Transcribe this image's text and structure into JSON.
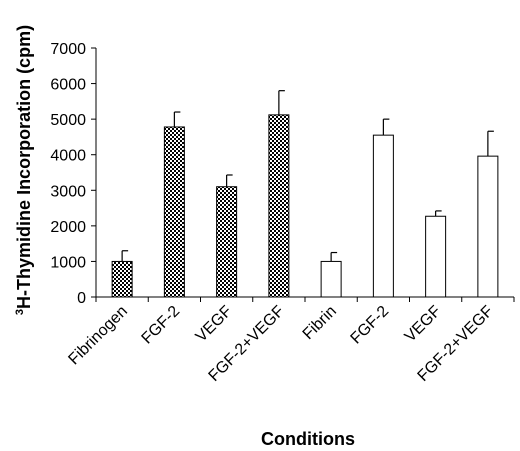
{
  "chart_data": {
    "type": "bar",
    "title": "",
    "xlabel": "Conditions",
    "ylabel_sup": "3",
    "ylabel": "H-Thymidine Incorporation (cpm)",
    "ylim": [
      0,
      7000
    ],
    "yticks": [
      0,
      1000,
      2000,
      3000,
      4000,
      5000,
      6000,
      7000
    ],
    "grid": false,
    "legend": "none",
    "categories": [
      "Fibrinogen",
      "FGF-2",
      "VEGF",
      "FGF-2+VEGF",
      "Fibrin",
      "FGF-2",
      "VEGF",
      "FGF-2+VEGF"
    ],
    "values": [
      1000,
      4780,
      3100,
      5120,
      1000,
      4550,
      2270,
      3960
    ],
    "error": [
      300,
      420,
      330,
      680,
      250,
      450,
      150,
      700
    ],
    "fill_style": [
      "checkered",
      "checkered",
      "checkered",
      "checkered",
      "white",
      "white",
      "white",
      "white"
    ],
    "colors": {
      "bar_stroke": "#000000",
      "checker_dark": "#000000",
      "checker_light": "#ffffff",
      "open_fill": "#ffffff"
    }
  }
}
